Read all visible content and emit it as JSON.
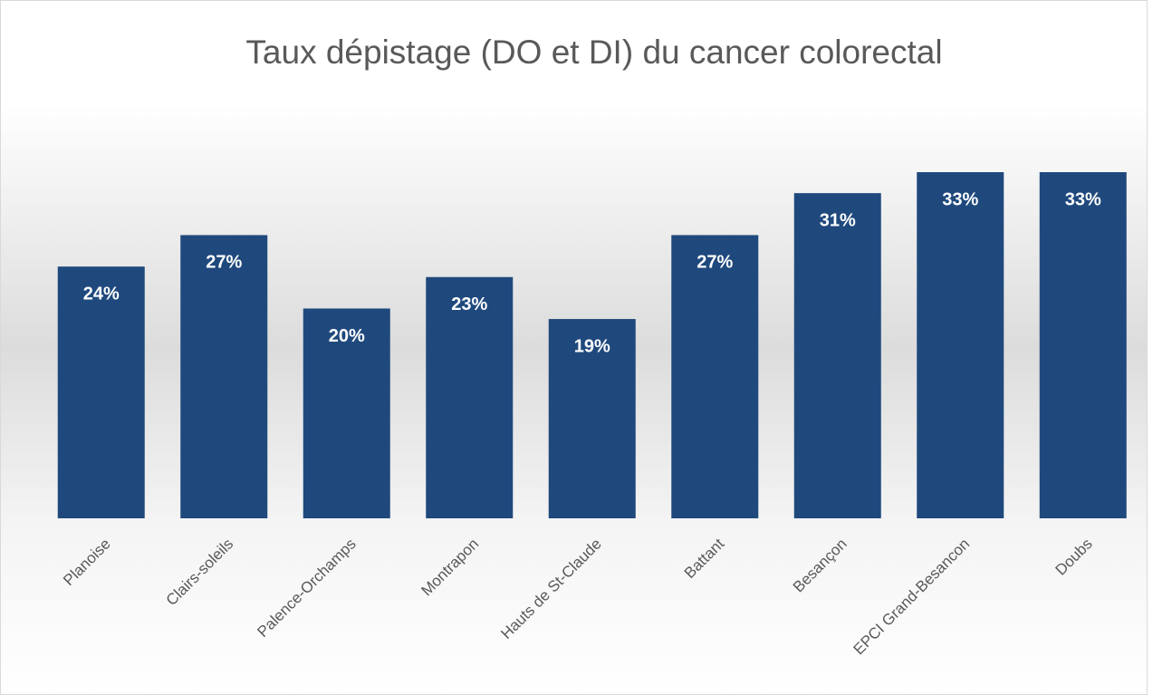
{
  "chart_data": {
    "type": "bar",
    "title": "Taux dépistage (DO et DI) du cancer colorectal",
    "categories": [
      "Planoise",
      "Clairs-soleils",
      "Palence-Orchamps",
      "Montrapon",
      "Hauts de St-Claude",
      "Battant",
      "Besançon",
      "EPCI Grand-Besancon",
      "Doubs"
    ],
    "values": [
      24,
      27,
      20,
      23,
      19,
      27,
      31,
      33,
      33
    ],
    "value_labels": [
      "24%",
      "27%",
      "20%",
      "23%",
      "19%",
      "27%",
      "31%",
      "33%",
      "33%"
    ],
    "color": "#1f497d"
  }
}
